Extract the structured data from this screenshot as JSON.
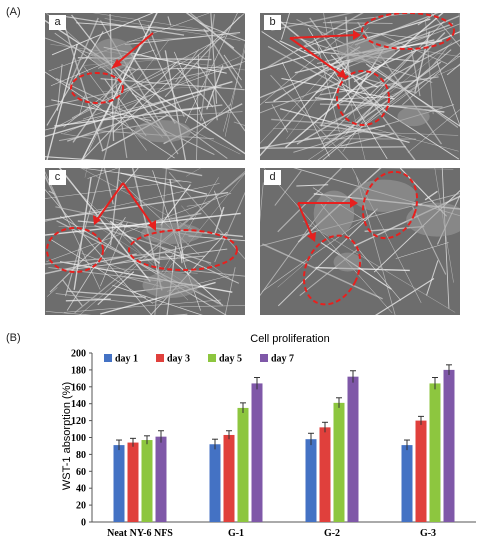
{
  "figure": {
    "panel_a_label": "(A)",
    "panel_b_label": "(B)",
    "sem_panels": [
      {
        "letter": "a"
      },
      {
        "letter": "b"
      },
      {
        "letter": "c"
      },
      {
        "letter": "d"
      }
    ]
  },
  "colors": {
    "annotation": "#e8201e",
    "day1": "#4472c4",
    "day3": "#e0403c",
    "day5": "#8dc63f",
    "day7": "#7f58a8"
  },
  "chart_data": {
    "type": "bar",
    "title": "Cell proliferation",
    "xlabel": "",
    "ylabel": "WST-1 absorption (%)",
    "ylim": [
      0,
      200
    ],
    "yticks": [
      0,
      20,
      40,
      60,
      80,
      100,
      120,
      140,
      160,
      180,
      200
    ],
    "grid": false,
    "legend_position": "top-left",
    "categories": [
      "Neat NY-6 NFS",
      "G-1",
      "G-2",
      "G-3"
    ],
    "series": [
      {
        "name": "day 1",
        "values": [
          91,
          92,
          98,
          91
        ],
        "errors": [
          6,
          6,
          7,
          6
        ]
      },
      {
        "name": "day 3",
        "values": [
          94,
          103,
          112,
          120
        ],
        "errors": [
          5,
          5,
          6,
          5
        ]
      },
      {
        "name": "day 5",
        "values": [
          97,
          135,
          141,
          164
        ],
        "errors": [
          5,
          6,
          6,
          7
        ]
      },
      {
        "name": "day 7",
        "values": [
          101,
          164,
          172,
          180
        ],
        "errors": [
          7,
          7,
          7,
          6
        ]
      }
    ]
  }
}
